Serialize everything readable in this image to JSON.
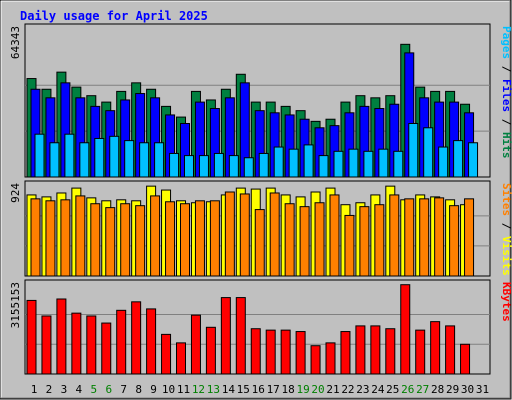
{
  "chart_data": {
    "type": "bar",
    "title": "Daily usage for April 2025",
    "x": [
      "1",
      "2",
      "3",
      "4",
      "5",
      "6",
      "7",
      "8",
      "9",
      "10",
      "11",
      "12",
      "13",
      "14",
      "15",
      "16",
      "17",
      "18",
      "19",
      "20",
      "21",
      "22",
      "23",
      "24",
      "25",
      "26",
      "27",
      "28",
      "29",
      "30",
      "31"
    ],
    "weekend_days": [
      "5",
      "6",
      "12",
      "13",
      "19",
      "20",
      "26",
      "27"
    ],
    "panels": [
      {
        "id": "hits-files-pages",
        "max_label": "64343",
        "ymax": 64343,
        "legend": [
          {
            "text": "Pages",
            "color": "#00c0ff"
          },
          {
            "text": " / ",
            "color": "#000000"
          },
          {
            "text": "Files",
            "color": "#0000ff"
          },
          {
            "text": " / ",
            "color": "#000000"
          },
          {
            "text": "Hits",
            "color": "#008040"
          }
        ],
        "series": [
          {
            "name": "Hits",
            "color": "#008040",
            "offset": 0,
            "values": [
              46000,
              41000,
              49000,
              42000,
              38000,
              35000,
              40000,
              44000,
              41000,
              33000,
              28000,
              40000,
              36000,
              41000,
              48000,
              35000,
              35000,
              33000,
              31000,
              26000,
              27000,
              35000,
              38000,
              37000,
              38000,
              62000,
              42000,
              40000,
              40000,
              34000,
              0
            ]
          },
          {
            "name": "Files",
            "color": "#0000ff",
            "offset": 4,
            "values": [
              41000,
              37000,
              44000,
              37000,
              33000,
              31000,
              36000,
              39000,
              37000,
              29000,
              25000,
              35000,
              32000,
              37000,
              44000,
              31000,
              30000,
              29000,
              27000,
              23000,
              24000,
              30000,
              33000,
              32000,
              34000,
              58000,
              37000,
              35000,
              35000,
              30000,
              0
            ]
          },
          {
            "name": "Pages",
            "color": "#00c0ff",
            "offset": 8,
            "values": [
              20000,
              16000,
              20000,
              16000,
              18000,
              19000,
              17000,
              16000,
              16000,
              11000,
              10000,
              10000,
              11000,
              10000,
              9000,
              11000,
              14000,
              13000,
              15000,
              10000,
              12000,
              13000,
              12000,
              13000,
              12000,
              25000,
              23000,
              14000,
              17000,
              16000,
              0
            ]
          }
        ]
      },
      {
        "id": "visits-sites",
        "max_label": "924",
        "ymax": 924,
        "legend": [
          {
            "text": "Sites",
            "color": "#ff8000"
          },
          {
            "text": " / ",
            "color": "#000000"
          },
          {
            "text": "Visits",
            "color": "#ffff00"
          }
        ],
        "series": [
          {
            "name": "Visits",
            "color": "#ffff00",
            "offset": 0,
            "values": [
              830,
              810,
              850,
              900,
              800,
              770,
              780,
              770,
              920,
              880,
              770,
              750,
              760,
              830,
              900,
              890,
              900,
              830,
              810,
              860,
              900,
              730,
              750,
              830,
              920,
              780,
              830,
              810,
              780,
              730,
              0
            ]
          },
          {
            "name": "Sites",
            "color": "#ff8000",
            "offset": 4,
            "values": [
              790,
              770,
              780,
              820,
              740,
              700,
              740,
              720,
              820,
              760,
              740,
              770,
              770,
              860,
              840,
              680,
              850,
              740,
              710,
              750,
              830,
              620,
              710,
              730,
              830,
              790,
              790,
              800,
              720,
              790,
              0
            ]
          }
        ]
      },
      {
        "id": "kbytes",
        "max_label": "3155153",
        "ymax": 3155153,
        "legend": [
          {
            "text": "KBytes",
            "color": "#ff0000"
          }
        ],
        "series": [
          {
            "name": "KBytes",
            "color": "#ff0000",
            "offset": 0,
            "values": [
              2600000,
              2050000,
              2650000,
              2150000,
              2050000,
              1800000,
              2250000,
              2550000,
              2300000,
              1400000,
              1100000,
              2080000,
              1650000,
              2700000,
              2700000,
              1600000,
              1550000,
              1550000,
              1500000,
              1000000,
              1100000,
              1500000,
              1700000,
              1700000,
              1600000,
              3155153,
              1550000,
              1850000,
              1700000,
              1050000,
              0
            ]
          }
        ]
      }
    ],
    "colors": {
      "page_bg": "#c0c0c0",
      "title": "#0000ff",
      "grid": "#808080",
      "day_label": "#000000",
      "weekend_label": "#008000"
    }
  }
}
